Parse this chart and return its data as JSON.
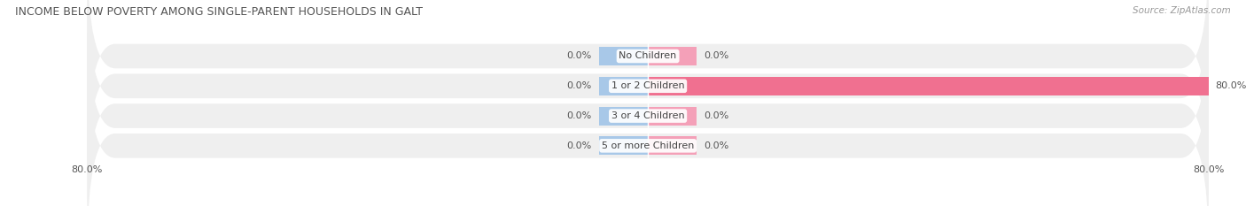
{
  "title": "INCOME BELOW POVERTY AMONG SINGLE-PARENT HOUSEHOLDS IN GALT",
  "source": "Source: ZipAtlas.com",
  "categories": [
    "No Children",
    "1 or 2 Children",
    "3 or 4 Children",
    "5 or more Children"
  ],
  "single_father": [
    0.0,
    0.0,
    0.0,
    0.0
  ],
  "single_mother": [
    0.0,
    80.0,
    0.0,
    0.0
  ],
  "father_color": "#a8c8e8",
  "mother_color": "#f07090",
  "mother_color_light": "#f4a0b8",
  "row_bg_color": "#efefef",
  "xlim": [
    -80,
    80
  ],
  "title_fontsize": 9,
  "label_fontsize": 8,
  "category_fontsize": 8,
  "value_fontsize": 8,
  "source_fontsize": 7.5,
  "stub_size": 7.0
}
